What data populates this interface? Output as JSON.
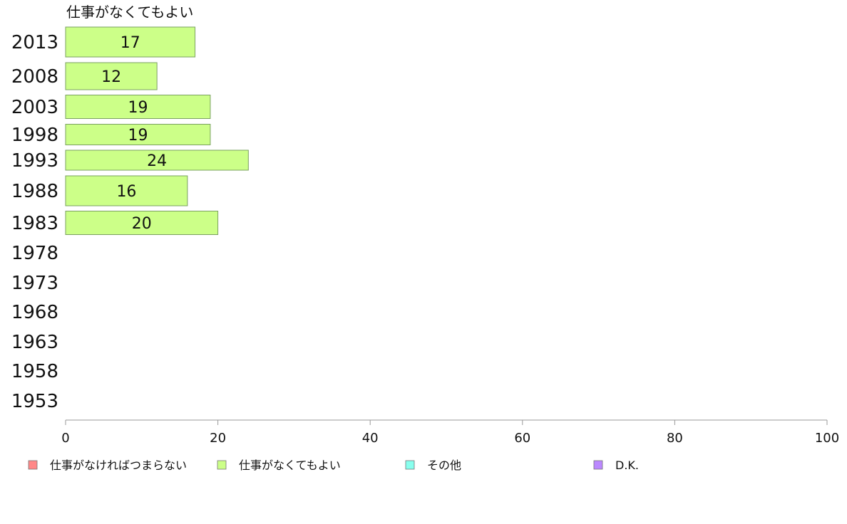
{
  "chart_data": {
    "type": "bar",
    "orientation": "horizontal",
    "title": "仕事がなくてもよい",
    "categories": [
      "2013",
      "2008",
      "2003",
      "1998",
      "1993",
      "1988",
      "1983",
      "1978",
      "1973",
      "1968",
      "1963",
      "1958",
      "1953"
    ],
    "series": [
      {
        "name": "仕事がなくてもよい",
        "color": "#ccff88",
        "values": [
          17,
          12,
          19,
          19,
          24,
          16,
          20,
          null,
          null,
          null,
          null,
          null,
          null
        ]
      }
    ],
    "xlim": [
      0,
      100
    ],
    "xticks": [
      0,
      20,
      40,
      60,
      80,
      100
    ],
    "grid": false,
    "legend": {
      "placement": "bottom",
      "items": [
        {
          "label": "仕事がなければつまらない",
          "color": "#ff8888"
        },
        {
          "label": "仕事がなくてもよい",
          "color": "#ccff88"
        },
        {
          "label": "その他",
          "color": "#88ffee"
        },
        {
          "label": "D.K.",
          "color": "#bb88ff"
        }
      ]
    }
  }
}
